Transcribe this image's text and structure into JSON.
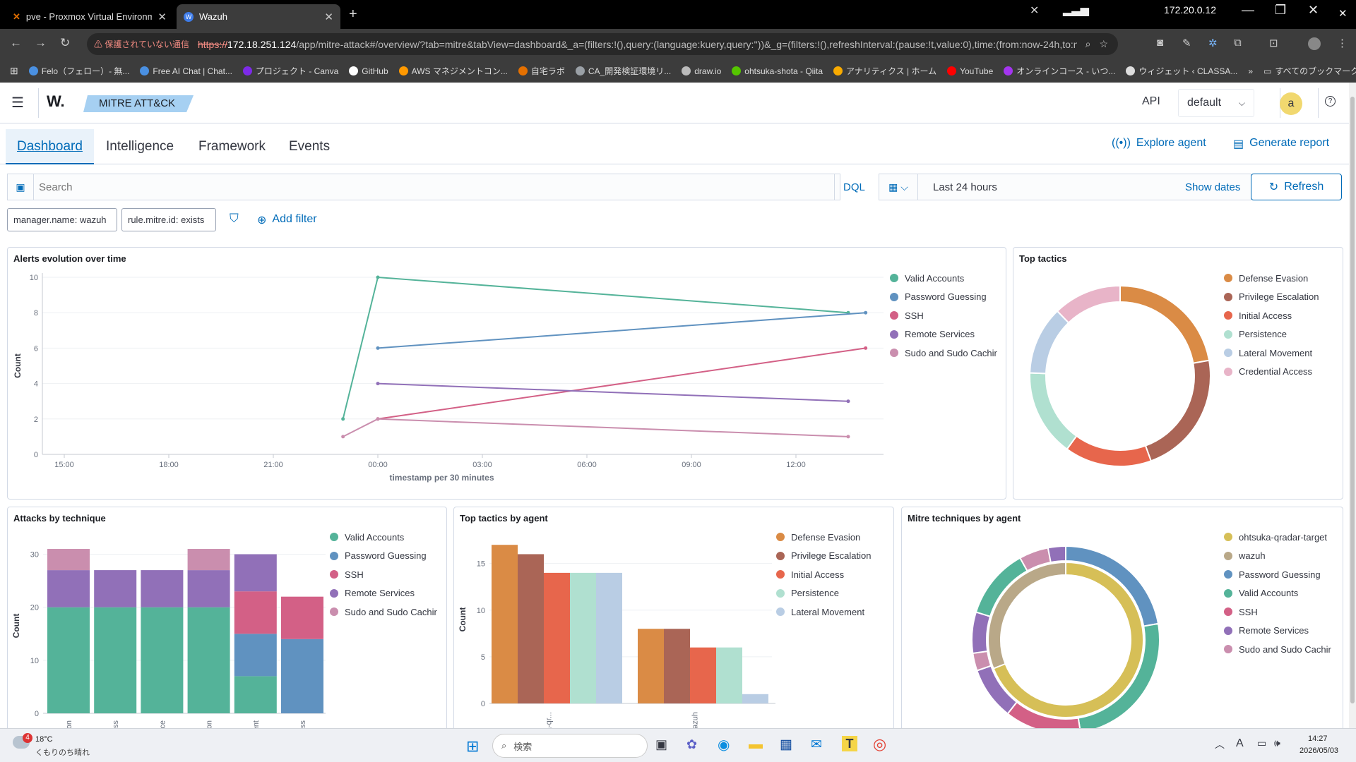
{
  "browser": {
    "tabs": [
      {
        "label": "pve - Proxmox Virtual Environm",
        "close": "✕"
      },
      {
        "label": "Wazuh",
        "close": "✕"
      }
    ],
    "new_tab": "+",
    "ip": "172.20.0.12",
    "security_warning": "⚠ 保護されていない通信",
    "url_scheme": "https://",
    "url_host": "172.18.251.124",
    "url_rest": "/app/mitre-attack#/overview/?tab=mitre&tabView=dashboard&_a=(filters:!(),query:(language:kuery,query:''))&_g=(filters:!(),refreshInterval:(pause:!t,value:0),time:(from:now-24h,to:no...",
    "bookmarks": [
      {
        "label": "Felo（フェロー）- 無...",
        "color": "#4a90e2"
      },
      {
        "label": "Free AI Chat | Chat...",
        "color": "#4a90e2"
      },
      {
        "label": "プロジェクト - Canva",
        "color": "#7d2ae8"
      },
      {
        "label": "GitHub",
        "color": "#ffffff"
      },
      {
        "label": "AWS マネジメントコン...",
        "color": "#ff9900"
      },
      {
        "label": "自宅ラボ",
        "color": "#e57000"
      },
      {
        "label": "CA_開発検証環境リ...",
        "color": "#9aa0a6"
      },
      {
        "label": "draw.io",
        "color": "#bbbbbb"
      },
      {
        "label": "ohtsuka-shota - Qiita",
        "color": "#55c500"
      },
      {
        "label": "アナリティクス | ホーム",
        "color": "#f9ab00"
      },
      {
        "label": "YouTube",
        "color": "#ff0000"
      },
      {
        "label": "オンラインコース - いつ...",
        "color": "#a435f0"
      },
      {
        "label": "ウィジェット ‹ CLASSA...",
        "color": "#dddddd"
      }
    ],
    "bookmarks_more": "»",
    "all_bookmarks": "すべてのブックマーク"
  },
  "app": {
    "logo": "W.",
    "breadcrumb": "MITRE ATT&CK",
    "api_label": "API",
    "tenant": "default",
    "avatar": "a",
    "help": "?"
  },
  "tabs": [
    "Dashboard",
    "Intelligence",
    "Framework",
    "Events"
  ],
  "active_tab": "Dashboard",
  "actions": {
    "explore_agent": "Explore agent",
    "generate_report": "Generate report"
  },
  "query": {
    "placeholder": "Search",
    "dql": "DQL",
    "time_range": "Last 24 hours",
    "show_dates": "Show dates",
    "refresh": "Refresh"
  },
  "filters": [
    "manager.name: wazuh",
    "rule.mitre.id: exists"
  ],
  "add_filter": "Add filter",
  "panels": {
    "alerts_title": "Alerts evolution over time",
    "top_tactics_title": "Top tactics",
    "attacks_title": "Attacks by technique",
    "tactics_agent_title": "Top tactics by agent",
    "techniques_agent_title": "Mitre techniques by agent"
  },
  "colors": {
    "valid_accounts": "#54b399",
    "password_guessing": "#6092c0",
    "ssh": "#d36086",
    "remote_services": "#9170b8",
    "sudo": "#ca8eae",
    "defense_evasion": "#da8b45",
    "privilege_escalation": "#aa6556",
    "initial_access": "#e7664c",
    "persistence": "#b0e0d0",
    "lateral_movement": "#b9cde4",
    "credential_access": "#e8b4c8",
    "agent_qradar": "#d6bf57",
    "agent_wazuh": "#b9a888"
  },
  "chart_data": [
    {
      "type": "line",
      "title": "Alerts evolution over time",
      "xlabel": "timestamp per 30 minutes",
      "ylabel": "Count",
      "x_ticks": [
        "15:00",
        "18:00",
        "21:00",
        "00:00",
        "03:00",
        "06:00",
        "09:00",
        "12:00"
      ],
      "y_ticks": [
        "0",
        "2",
        "4",
        "6",
        "8",
        "10"
      ],
      "ylim": [
        0,
        10
      ],
      "series": [
        {
          "name": "Valid Accounts",
          "points": [
            [
              "23:00",
              2
            ],
            [
              "00:00",
              10
            ],
            [
              "13:30",
              8
            ]
          ]
        },
        {
          "name": "Password Guessing",
          "points": [
            [
              "00:00",
              6
            ],
            [
              "14:00",
              8
            ]
          ]
        },
        {
          "name": "SSH",
          "points": [
            [
              "00:00",
              2
            ],
            [
              "14:00",
              6
            ]
          ]
        },
        {
          "name": "Remote Services",
          "points": [
            [
              "00:00",
              4
            ],
            [
              "13:30",
              3
            ]
          ]
        },
        {
          "name": "Sudo and Sudo Caching",
          "points": [
            [
              "23:00",
              1
            ],
            [
              "00:00",
              2
            ],
            [
              "13:30",
              1
            ]
          ]
        }
      ]
    },
    {
      "type": "pie",
      "title": "Top tactics",
      "categories": [
        "Defense Evasion",
        "Privilege Escalation",
        "Initial Access",
        "Persistence",
        "Lateral Movement",
        "Credential Access"
      ],
      "values": [
        20,
        20,
        14,
        14,
        11,
        11
      ]
    },
    {
      "type": "bar",
      "title": "Attacks by technique",
      "stacked": true,
      "ylabel": "Count",
      "y_ticks": [
        "0",
        "10",
        "20",
        "30"
      ],
      "ylim": [
        0,
        33
      ],
      "categories": [
        "Defense Evasion",
        "Initial Access",
        "Persistence",
        "Privilege Escalation",
        "Lateral Movement",
        "Credential Access"
      ],
      "series": [
        {
          "name": "Valid Accounts",
          "values": [
            20,
            20,
            20,
            20,
            7,
            0
          ]
        },
        {
          "name": "Password Guessing",
          "values": [
            0,
            0,
            0,
            0,
            8,
            14
          ]
        },
        {
          "name": "SSH",
          "values": [
            0,
            0,
            0,
            0,
            8,
            8
          ]
        },
        {
          "name": "Remote Services",
          "values": [
            7,
            7,
            7,
            7,
            7,
            0
          ]
        },
        {
          "name": "Sudo and Sudo Caching",
          "values": [
            4,
            0,
            0,
            4,
            0,
            0
          ]
        }
      ]
    },
    {
      "type": "bar",
      "title": "Top tactics by agent",
      "ylabel": "Count",
      "y_ticks": [
        "0",
        "5",
        "10",
        "15"
      ],
      "ylim": [
        0,
        18
      ],
      "categories": [
        "ohtsuka-qr...",
        "wazuh"
      ],
      "series": [
        {
          "name": "Defense Evasion",
          "values": [
            17,
            8
          ]
        },
        {
          "name": "Privilege Escalation",
          "values": [
            16,
            8
          ]
        },
        {
          "name": "Initial Access",
          "values": [
            14,
            6
          ]
        },
        {
          "name": "Persistence",
          "values": [
            14,
            6
          ]
        },
        {
          "name": "Lateral Movement",
          "values": [
            14,
            1
          ]
        }
      ]
    },
    {
      "type": "pie",
      "title": "Mitre techniques by agent",
      "inner": {
        "categories": [
          "ohtsuka-qradar-target",
          "wazuh"
        ],
        "values": [
          69,
          31
        ]
      },
      "outer": {
        "categories": [
          "Password Guessing",
          "Valid Accounts",
          "SSH",
          "Remote Services",
          "Sudo and Sudo Caching",
          "Remote Services",
          "Valid Accounts",
          "Sudo and Sudo Caching",
          "Remote Services"
        ],
        "values": [
          22,
          25,
          13,
          9,
          3,
          7,
          12,
          5,
          3
        ]
      }
    }
  ],
  "legends": {
    "alerts": [
      "Valid Accounts",
      "Password Guessing",
      "SSH",
      "Remote Services",
      "Sudo and Sudo Cachir"
    ],
    "top_tactics": [
      "Defense Evasion",
      "Privilege Escalation",
      "Initial Access",
      "Persistence",
      "Lateral Movement",
      "Credential Access"
    ],
    "attacks": [
      "Valid Accounts",
      "Password Guessing",
      "SSH",
      "Remote Services",
      "Sudo and Sudo Cachir"
    ],
    "tactics_agent": [
      "Defense Evasion",
      "Privilege Escalation",
      "Initial Access",
      "Persistence",
      "Lateral Movement"
    ],
    "techniques_agent": [
      "ohtsuka-qradar-target",
      "wazuh",
      "Password Guessing",
      "Valid Accounts",
      "SSH",
      "Remote Services",
      "Sudo and Sudo Cachir"
    ]
  },
  "taskbar": {
    "weather_badge": "4",
    "temperature": "18°C",
    "weather": "くもりのち晴れ",
    "search": "検索",
    "time": "14:27",
    "date": "2026/05/03",
    "ime": "A"
  }
}
